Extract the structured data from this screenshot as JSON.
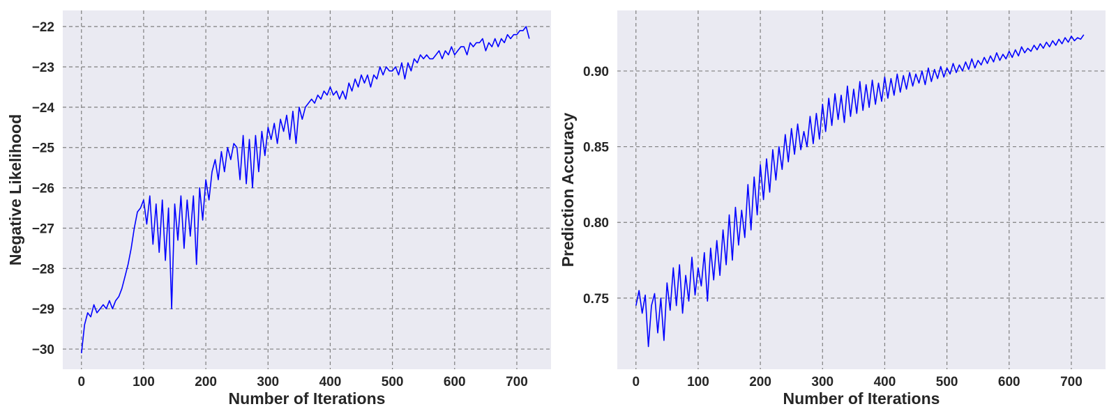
{
  "chart_data": [
    {
      "type": "line",
      "xlabel": "Number of Iterations",
      "ylabel": "Negative Likelihood",
      "xlim": [
        -30,
        755
      ],
      "ylim": [
        -30.5,
        -21.6
      ],
      "xticks": [
        0,
        100,
        200,
        300,
        400,
        500,
        600,
        700
      ],
      "yticks": [
        -30,
        -29,
        -28,
        -27,
        -26,
        -25,
        -24,
        -23,
        -22
      ],
      "ytick_labels": [
        "−30",
        "−29",
        "−28",
        "−27",
        "−26",
        "−25",
        "−24",
        "−23",
        "−22"
      ],
      "grid": true,
      "line_color": "#0000ff",
      "series": [
        {
          "x": [
            0,
            5,
            10,
            15,
            20,
            25,
            30,
            35,
            40,
            45,
            50,
            55,
            60,
            65,
            70,
            75,
            80,
            85,
            90,
            95,
            100,
            105,
            110,
            115,
            120,
            125,
            130,
            135,
            140,
            145,
            150,
            155,
            160,
            165,
            170,
            175,
            180,
            185,
            190,
            195,
            200,
            205,
            210,
            215,
            220,
            225,
            230,
            235,
            240,
            245,
            250,
            255,
            260,
            265,
            270,
            275,
            280,
            285,
            290,
            295,
            300,
            305,
            310,
            315,
            320,
            325,
            330,
            335,
            340,
            345,
            350,
            355,
            360,
            365,
            370,
            375,
            380,
            385,
            390,
            395,
            400,
            405,
            410,
            415,
            420,
            425,
            430,
            435,
            440,
            445,
            450,
            455,
            460,
            465,
            470,
            475,
            480,
            485,
            490,
            495,
            500,
            505,
            510,
            515,
            520,
            525,
            530,
            535,
            540,
            545,
            550,
            555,
            560,
            565,
            570,
            575,
            580,
            585,
            590,
            595,
            600,
            605,
            610,
            615,
            620,
            625,
            630,
            635,
            640,
            645,
            650,
            655,
            660,
            665,
            670,
            675,
            680,
            685,
            690,
            695,
            700,
            705,
            710,
            715,
            720
          ],
          "y": [
            -30.1,
            -29.4,
            -29.1,
            -29.2,
            -28.9,
            -29.1,
            -29.0,
            -28.9,
            -29.0,
            -28.8,
            -29.0,
            -28.8,
            -28.7,
            -28.5,
            -28.2,
            -27.9,
            -27.5,
            -27.0,
            -26.6,
            -26.5,
            -26.3,
            -26.9,
            -26.2,
            -27.4,
            -26.4,
            -27.6,
            -26.3,
            -27.8,
            -26.5,
            -29.0,
            -26.4,
            -27.3,
            -26.2,
            -27.5,
            -26.3,
            -27.2,
            -26.2,
            -27.9,
            -26.0,
            -26.8,
            -25.8,
            -26.3,
            -25.6,
            -25.3,
            -25.8,
            -25.1,
            -25.6,
            -25.0,
            -25.3,
            -24.9,
            -25.0,
            -25.8,
            -24.7,
            -25.9,
            -24.8,
            -26.0,
            -24.7,
            -25.6,
            -24.6,
            -25.2,
            -24.5,
            -24.8,
            -24.4,
            -24.9,
            -24.3,
            -24.6,
            -24.2,
            -24.8,
            -24.1,
            -24.9,
            -24.0,
            -24.3,
            -24.0,
            -23.9,
            -23.8,
            -23.9,
            -23.7,
            -23.8,
            -23.6,
            -23.7,
            -23.5,
            -23.7,
            -23.6,
            -23.8,
            -23.6,
            -23.8,
            -23.4,
            -23.6,
            -23.3,
            -23.5,
            -23.2,
            -23.4,
            -23.2,
            -23.5,
            -23.2,
            -23.3,
            -23.0,
            -23.2,
            -23.0,
            -23.1,
            -23.1,
            -23.0,
            -23.2,
            -22.9,
            -23.3,
            -22.9,
            -23.1,
            -22.8,
            -22.9,
            -22.7,
            -22.8,
            -22.7,
            -22.8,
            -22.8,
            -22.7,
            -22.6,
            -22.8,
            -22.6,
            -22.7,
            -22.5,
            -22.7,
            -22.6,
            -22.5,
            -22.5,
            -22.7,
            -22.4,
            -22.5,
            -22.4,
            -22.4,
            -22.3,
            -22.6,
            -22.4,
            -22.5,
            -22.3,
            -22.5,
            -22.3,
            -22.4,
            -22.2,
            -22.3,
            -22.2,
            -22.2,
            -22.1,
            -22.1,
            -22.0,
            -22.3
          ]
        }
      ]
    },
    {
      "type": "line",
      "xlabel": "Number of Iterations",
      "ylabel": "Prediction Accuracy",
      "xlim": [
        -30,
        755
      ],
      "ylim": [
        0.703,
        0.94
      ],
      "xticks": [
        0,
        100,
        200,
        300,
        400,
        500,
        600,
        700
      ],
      "yticks": [
        0.75,
        0.8,
        0.85,
        0.9
      ],
      "ytick_labels": [
        "0.75",
        "0.80",
        "0.85",
        "0.90"
      ],
      "grid": true,
      "line_color": "#0000ff",
      "series": [
        {
          "x": [
            0,
            5,
            10,
            15,
            20,
            25,
            30,
            35,
            40,
            45,
            50,
            55,
            60,
            65,
            70,
            75,
            80,
            85,
            90,
            95,
            100,
            105,
            110,
            115,
            120,
            125,
            130,
            135,
            140,
            145,
            150,
            155,
            160,
            165,
            170,
            175,
            180,
            185,
            190,
            195,
            200,
            205,
            210,
            215,
            220,
            225,
            230,
            235,
            240,
            245,
            250,
            255,
            260,
            265,
            270,
            275,
            280,
            285,
            290,
            295,
            300,
            305,
            310,
            315,
            320,
            325,
            330,
            335,
            340,
            345,
            350,
            355,
            360,
            365,
            370,
            375,
            380,
            385,
            390,
            395,
            400,
            405,
            410,
            415,
            420,
            425,
            430,
            435,
            440,
            445,
            450,
            455,
            460,
            465,
            470,
            475,
            480,
            485,
            490,
            495,
            500,
            505,
            510,
            515,
            520,
            525,
            530,
            535,
            540,
            545,
            550,
            555,
            560,
            565,
            570,
            575,
            580,
            585,
            590,
            595,
            600,
            605,
            610,
            615,
            620,
            625,
            630,
            635,
            640,
            645,
            650,
            655,
            660,
            665,
            670,
            675,
            680,
            685,
            690,
            695,
            700,
            705,
            710,
            715,
            720
          ],
          "y": [
            0.745,
            0.755,
            0.74,
            0.752,
            0.718,
            0.745,
            0.753,
            0.727,
            0.75,
            0.722,
            0.76,
            0.742,
            0.77,
            0.745,
            0.772,
            0.74,
            0.765,
            0.748,
            0.777,
            0.752,
            0.77,
            0.758,
            0.78,
            0.748,
            0.783,
            0.762,
            0.788,
            0.765,
            0.795,
            0.772,
            0.805,
            0.775,
            0.81,
            0.785,
            0.808,
            0.79,
            0.825,
            0.795,
            0.83,
            0.805,
            0.838,
            0.815,
            0.842,
            0.82,
            0.848,
            0.828,
            0.85,
            0.835,
            0.858,
            0.84,
            0.862,
            0.845,
            0.865,
            0.848,
            0.86,
            0.85,
            0.87,
            0.852,
            0.872,
            0.855,
            0.878,
            0.86,
            0.882,
            0.864,
            0.885,
            0.868,
            0.884,
            0.866,
            0.89,
            0.87,
            0.888,
            0.872,
            0.893,
            0.874,
            0.891,
            0.876,
            0.894,
            0.878,
            0.892,
            0.88,
            0.896,
            0.882,
            0.895,
            0.884,
            0.898,
            0.886,
            0.897,
            0.888,
            0.899,
            0.89,
            0.898,
            0.892,
            0.9,
            0.891,
            0.902,
            0.893,
            0.901,
            0.895,
            0.903,
            0.896,
            0.902,
            0.898,
            0.905,
            0.899,
            0.904,
            0.9,
            0.906,
            0.901,
            0.908,
            0.902,
            0.907,
            0.904,
            0.909,
            0.905,
            0.91,
            0.906,
            0.912,
            0.907,
            0.911,
            0.908,
            0.913,
            0.909,
            0.914,
            0.91,
            0.916,
            0.912,
            0.915,
            0.913,
            0.917,
            0.914,
            0.918,
            0.915,
            0.919,
            0.916,
            0.92,
            0.917,
            0.921,
            0.918,
            0.922,
            0.919,
            0.923,
            0.92,
            0.922,
            0.921,
            0.924
          ]
        }
      ]
    }
  ]
}
